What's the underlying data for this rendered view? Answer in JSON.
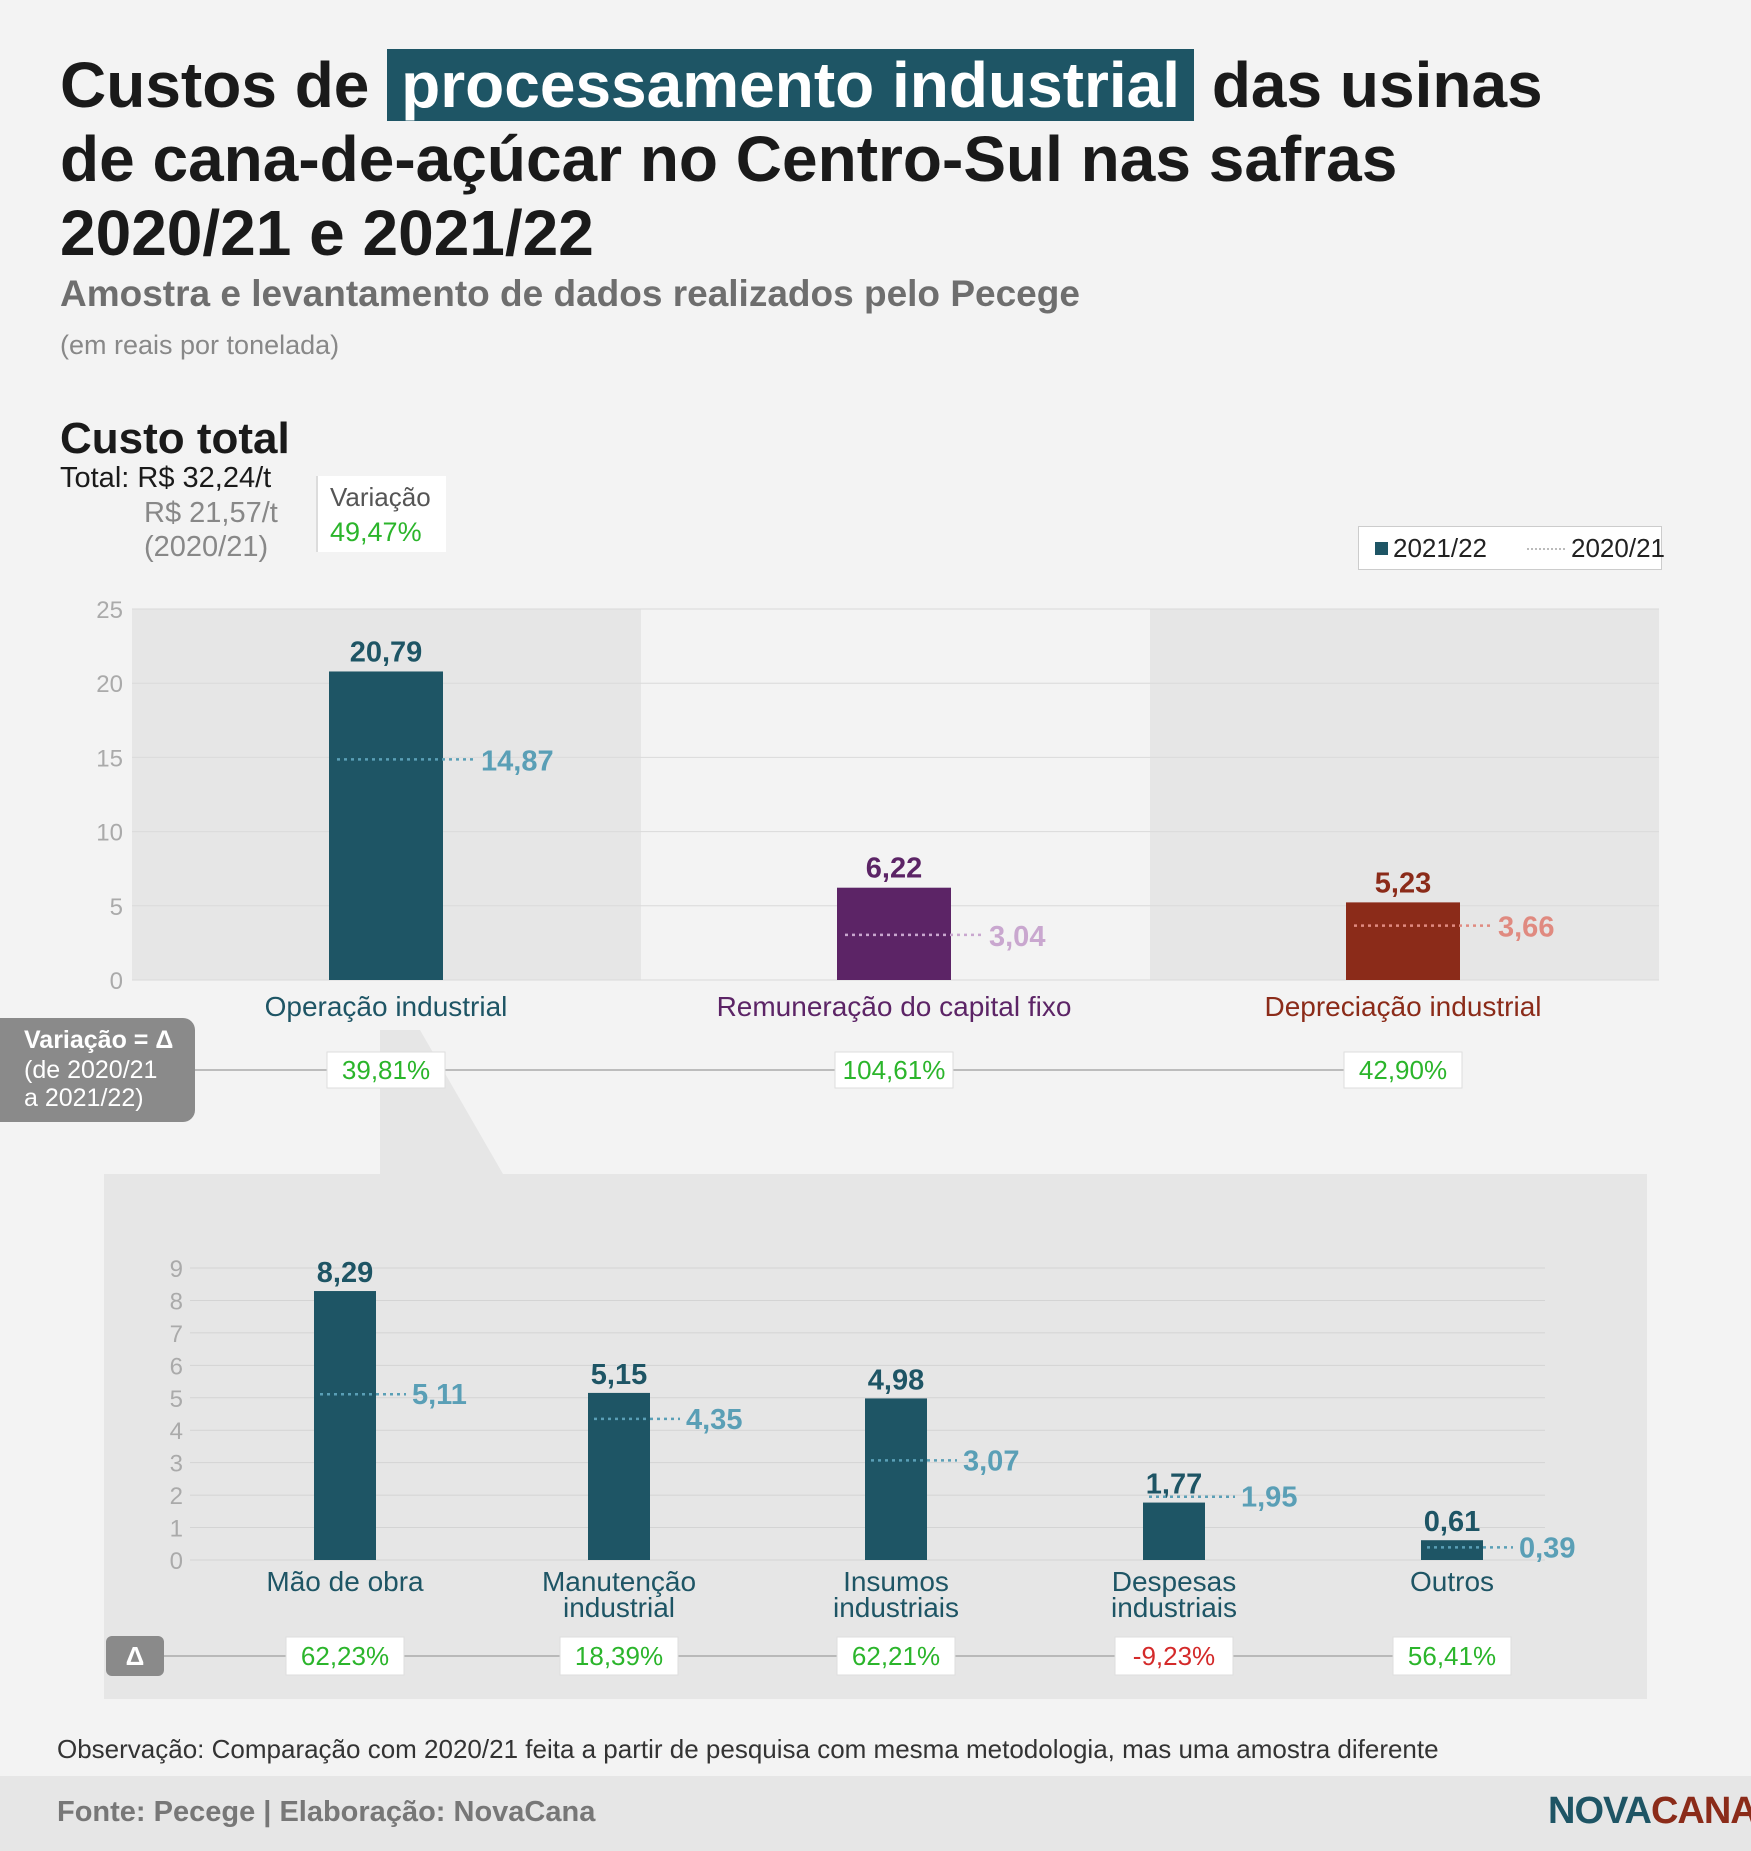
{
  "title": {
    "pre": "Custos de ",
    "highlight": "processamento industrial",
    "post": " das usinas de cana-de-açúcar no Centro-Sul nas safras 2020/21 e 2021/22"
  },
  "subtitle": "Amostra e levantamento de dados realizados pelo Pecege",
  "unit": "(em reais por tonelada)",
  "section_title": "Custo total",
  "total_line": "Total: R$ 32,24/t",
  "previous_line": "R$ 21,57/t (2020/21)",
  "variation": {
    "label": "Variação",
    "value": "49,47%"
  },
  "legend": {
    "current": "2021/22",
    "previous": "2020/21"
  },
  "delta_box": {
    "line1": "Variação = Δ",
    "line2": "(de 2020/21",
    "line3": "a 2021/22)"
  },
  "delta_small": "Δ",
  "colors": {
    "teal": "#1e5565",
    "teal_light": "#5a9fb6",
    "purple": "#5c2466",
    "purple_light": "#c9a7cf",
    "red": "#8b2b19",
    "red_light": "#e08a80",
    "green": "#2bb52b",
    "negative": "#d42a2a"
  },
  "chart_data": [
    {
      "type": "bar",
      "title": "Custo total",
      "categories": [
        "Operação industrial",
        "Remuneração do capital fixo",
        "Depreciação industrial"
      ],
      "series": [
        {
          "name": "2021/22",
          "values": [
            20.79,
            6.22,
            5.23
          ]
        },
        {
          "name": "2020/21",
          "values": [
            14.87,
            3.04,
            3.66
          ]
        }
      ],
      "value_labels": [
        "20,79",
        "6,22",
        "5,23"
      ],
      "previous_labels": [
        "14,87",
        "3,04",
        "3,66"
      ],
      "variation": [
        "39,81%",
        "104,61%",
        "42,90%"
      ],
      "y_ticks": [
        "0",
        "5",
        "10",
        "15",
        "20",
        "25"
      ],
      "ylim": [
        0,
        25
      ],
      "legend": "top-right",
      "grid": true
    },
    {
      "type": "bar",
      "categories": [
        [
          "Mão de obra"
        ],
        [
          "Manutenção",
          "industrial"
        ],
        [
          "Insumos",
          "industriais"
        ],
        [
          "Despesas",
          "industriais"
        ],
        [
          "Outros"
        ]
      ],
      "series": [
        {
          "name": "2021/22",
          "values": [
            8.29,
            5.15,
            4.98,
            1.77,
            0.61
          ]
        },
        {
          "name": "2020/21",
          "values": [
            5.11,
            4.35,
            3.07,
            1.95,
            0.39
          ]
        }
      ],
      "value_labels": [
        "8,29",
        "5,15",
        "4,98",
        "1,77",
        "0,61"
      ],
      "previous_labels": [
        "5,11",
        "4,35",
        "3,07",
        "1,95",
        "0,39"
      ],
      "variation": [
        "62,23%",
        "18,39%",
        "62,21%",
        "-9,23%",
        "56,41%"
      ],
      "y_ticks": [
        "0",
        "1",
        "2",
        "3",
        "4",
        "5",
        "6",
        "7",
        "8",
        "9"
      ],
      "ylim": [
        0,
        9
      ],
      "grid": true
    }
  ],
  "observation": "Observação: Comparação com 2020/21 feita a partir de pesquisa com mesma metodologia, mas uma amostra diferente",
  "source": "Fonte: Pecege | Elaboração: NovaCana",
  "logo": {
    "part1": "NOVA",
    "part2": "CANA"
  }
}
